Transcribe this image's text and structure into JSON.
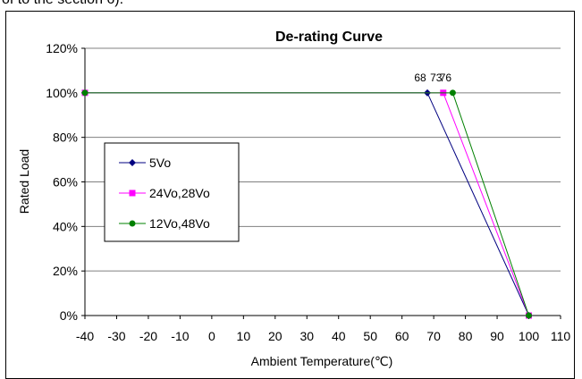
{
  "page_top_text": "of to the section 6).",
  "chart_data": {
    "type": "line",
    "title": "De-rating Curve",
    "xlabel": "Ambient Temperature(℃)",
    "ylabel": "Rated Load",
    "xlim": [
      -40,
      110
    ],
    "ylim": [
      0,
      120
    ],
    "xticks": [
      -40,
      -30,
      -20,
      -10,
      0,
      10,
      20,
      30,
      40,
      50,
      60,
      70,
      80,
      90,
      100,
      110
    ],
    "yticks": [
      0,
      20,
      40,
      60,
      80,
      100,
      120
    ],
    "ytick_suffix": "%",
    "grid": "horizontal",
    "legend_position": "left",
    "series": [
      {
        "name": "5Vo",
        "color": "#000080",
        "marker": "diamond",
        "x": [
          -40,
          68,
          100
        ],
        "y": [
          100,
          100,
          0
        ]
      },
      {
        "name": "24Vo,28Vo",
        "color": "#ff00ff",
        "marker": "square",
        "x": [
          -40,
          73,
          100
        ],
        "y": [
          100,
          100,
          0
        ]
      },
      {
        "name": "12Vo,48Vo",
        "color": "#008000",
        "marker": "circle",
        "x": [
          -40,
          76,
          100
        ],
        "y": [
          100,
          100,
          0
        ]
      }
    ],
    "annotations": [
      {
        "text": "68",
        "x": 68,
        "y": 100
      },
      {
        "text": "73",
        "x": 73,
        "y": 100
      },
      {
        "text": "76",
        "x": 76,
        "y": 100
      }
    ]
  }
}
